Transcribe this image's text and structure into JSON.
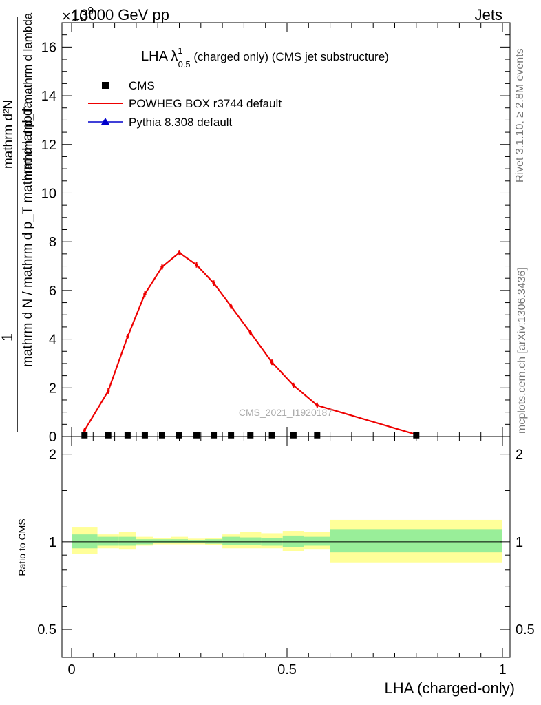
{
  "header": {
    "left": "13000 GeV pp",
    "multiplier": "×10",
    "multiplier_exp": "9",
    "right": "Jets"
  },
  "side_labels": {
    "rivet": "Rivet 3.1.10, ≥ 2.8M events",
    "mcplots": "mcplots.cern.ch [arXiv:1306.3436]"
  },
  "watermark": "CMS_2021_I1920187",
  "main_title": {
    "prefix": "LHA λ",
    "sup": "1",
    "sub": "0.5",
    "suffix": " (charged only) (CMS jet substructure)"
  },
  "legend": [
    {
      "label": "CMS",
      "color": "#000000",
      "style": "square"
    },
    {
      "label": "POWHEG BOX r3744 default",
      "color": "#ee0000",
      "style": "line"
    },
    {
      "label": "Pythia 8.308 default",
      "color": "#0000cc",
      "style": "triangle"
    }
  ],
  "y_label_main": {
    "numerator": "1",
    "denominator": "mathrm d N / mathrm d p_T mathrm d lambda",
    "top_num": "mathrm d²N",
    "top_den": "mathrm d p_T mathrm d lambda"
  },
  "y_label_ratio": "Ratio to CMS",
  "x_label": "LHA (charged-only)",
  "chart_data": [
    {
      "type": "line",
      "panel": "main",
      "xlim": [
        0,
        1
      ],
      "ylim": [
        0,
        17
      ],
      "y_multiplier": "1e9",
      "y_ticks": [
        0,
        2,
        4,
        6,
        8,
        10,
        12,
        14,
        16
      ],
      "x_ticks": [
        0,
        0.5,
        1
      ],
      "series": [
        {
          "name": "CMS",
          "color": "#000000",
          "marker": "square",
          "x": [
            0.03,
            0.085,
            0.13,
            0.17,
            0.21,
            0.25,
            0.29,
            0.33,
            0.37,
            0.415,
            0.465,
            0.515,
            0.57,
            0.8
          ],
          "y": [
            0.05,
            0.05,
            0.05,
            0.05,
            0.05,
            0.05,
            0.05,
            0.05,
            0.05,
            0.05,
            0.05,
            0.05,
            0.05,
            0.05
          ]
        },
        {
          "name": "POWHEG BOX r3744 default",
          "color": "#ee0000",
          "marker": "line",
          "x": [
            0.03,
            0.085,
            0.13,
            0.17,
            0.21,
            0.25,
            0.29,
            0.33,
            0.37,
            0.415,
            0.465,
            0.515,
            0.57,
            0.8
          ],
          "y": [
            0.25,
            1.87,
            4.1,
            5.85,
            6.97,
            7.55,
            7.05,
            6.3,
            5.35,
            4.27,
            3.05,
            2.1,
            1.28,
            0.08
          ]
        }
      ]
    },
    {
      "type": "area",
      "panel": "ratio",
      "xlim": [
        0,
        1
      ],
      "ylim": [
        0.4,
        2.3
      ],
      "scale": "log",
      "y_ticks": [
        0.5,
        1,
        2
      ],
      "bins": [
        {
          "lo": 0.0,
          "hi": 0.06,
          "inner": [
            0.95,
            1.06
          ],
          "outer": [
            0.91,
            1.12
          ]
        },
        {
          "lo": 0.06,
          "hi": 0.11,
          "inner": [
            0.97,
            1.04
          ],
          "outer": [
            0.95,
            1.06
          ]
        },
        {
          "lo": 0.11,
          "hi": 0.15,
          "inner": [
            0.97,
            1.04
          ],
          "outer": [
            0.94,
            1.08
          ]
        },
        {
          "lo": 0.15,
          "hi": 0.19,
          "inner": [
            0.98,
            1.02
          ],
          "outer": [
            0.97,
            1.04
          ]
        },
        {
          "lo": 0.19,
          "hi": 0.23,
          "inner": [
            0.99,
            1.02
          ],
          "outer": [
            0.98,
            1.03
          ]
        },
        {
          "lo": 0.23,
          "hi": 0.27,
          "inner": [
            0.99,
            1.02
          ],
          "outer": [
            0.98,
            1.04
          ]
        },
        {
          "lo": 0.27,
          "hi": 0.31,
          "inner": [
            0.99,
            1.015
          ],
          "outer": [
            0.98,
            1.025
          ]
        },
        {
          "lo": 0.31,
          "hi": 0.35,
          "inner": [
            0.985,
            1.02
          ],
          "outer": [
            0.975,
            1.03
          ]
        },
        {
          "lo": 0.35,
          "hi": 0.39,
          "inner": [
            0.975,
            1.04
          ],
          "outer": [
            0.95,
            1.06
          ]
        },
        {
          "lo": 0.39,
          "hi": 0.44,
          "inner": [
            0.975,
            1.035
          ],
          "outer": [
            0.95,
            1.08
          ]
        },
        {
          "lo": 0.44,
          "hi": 0.49,
          "inner": [
            0.97,
            1.03
          ],
          "outer": [
            0.95,
            1.07
          ]
        },
        {
          "lo": 0.49,
          "hi": 0.54,
          "inner": [
            0.96,
            1.05
          ],
          "outer": [
            0.93,
            1.09
          ]
        },
        {
          "lo": 0.54,
          "hi": 0.6,
          "inner": [
            0.97,
            1.04
          ],
          "outer": [
            0.94,
            1.08
          ]
        },
        {
          "lo": 0.6,
          "hi": 1.0,
          "inner": [
            0.92,
            1.1
          ],
          "outer": [
            0.845,
            1.19
          ]
        }
      ],
      "inner_color": "#99ee99",
      "outer_color": "#ffff99",
      "reference": 1.0
    }
  ]
}
